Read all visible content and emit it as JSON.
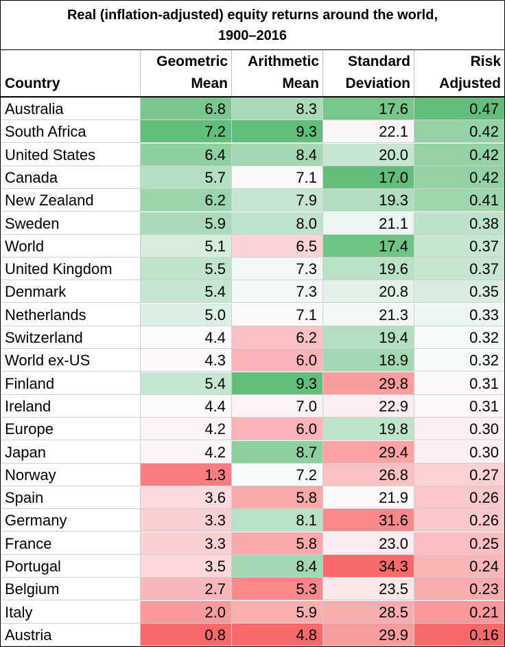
{
  "chart_data": {
    "type": "table",
    "title_lines": [
      "Real (inflation-adjusted) equity returns around the world,",
      "1900–2016"
    ],
    "columns": [
      {
        "key": "country",
        "lines": [
          "",
          "Country"
        ]
      },
      {
        "key": "geo",
        "lines": [
          "Geometric",
          "Mean"
        ]
      },
      {
        "key": "arith",
        "lines": [
          "Arithmetic",
          "Mean"
        ]
      },
      {
        "key": "sd",
        "lines": [
          "Standard",
          "Deviation"
        ]
      },
      {
        "key": "risk",
        "lines": [
          "Risk",
          "Adjusted"
        ]
      }
    ],
    "rows": [
      {
        "country": "Australia",
        "geo": "6.8",
        "arith": "8.3",
        "sd": "17.6",
        "risk": "0.47"
      },
      {
        "country": "South Africa",
        "geo": "7.2",
        "arith": "9.3",
        "sd": "22.1",
        "risk": "0.42"
      },
      {
        "country": "United States",
        "geo": "6.4",
        "arith": "8.4",
        "sd": "20.0",
        "risk": "0.42"
      },
      {
        "country": "Canada",
        "geo": "5.7",
        "arith": "7.1",
        "sd": "17.0",
        "risk": "0.42"
      },
      {
        "country": "New Zealand",
        "geo": "6.2",
        "arith": "7.9",
        "sd": "19.3",
        "risk": "0.41"
      },
      {
        "country": "Sweden",
        "geo": "5.9",
        "arith": "8.0",
        "sd": "21.1",
        "risk": "0.38"
      },
      {
        "country": "World",
        "geo": "5.1",
        "arith": "6.5",
        "sd": "17.4",
        "risk": "0.37"
      },
      {
        "country": "United Kingdom",
        "geo": "5.5",
        "arith": "7.3",
        "sd": "19.6",
        "risk": "0.37"
      },
      {
        "country": "Denmark",
        "geo": "5.4",
        "arith": "7.3",
        "sd": "20.8",
        "risk": "0.35"
      },
      {
        "country": "Netherlands",
        "geo": "5.0",
        "arith": "7.1",
        "sd": "21.3",
        "risk": "0.33"
      },
      {
        "country": "Switzerland",
        "geo": "4.4",
        "arith": "6.2",
        "sd": "19.4",
        "risk": "0.32"
      },
      {
        "country": "World ex-US",
        "geo": "4.3",
        "arith": "6.0",
        "sd": "18.9",
        "risk": "0.32"
      },
      {
        "country": "Finland",
        "geo": "5.4",
        "arith": "9.3",
        "sd": "29.8",
        "risk": "0.31"
      },
      {
        "country": "Ireland",
        "geo": "4.4",
        "arith": "7.0",
        "sd": "22.9",
        "risk": "0.31"
      },
      {
        "country": "Europe",
        "geo": "4.2",
        "arith": "6.0",
        "sd": "19.8",
        "risk": "0.30"
      },
      {
        "country": "Japan",
        "geo": "4.2",
        "arith": "8.7",
        "sd": "29.4",
        "risk": "0.30"
      },
      {
        "country": "Norway",
        "geo": "1.3",
        "arith": "7.2",
        "sd": "26.8",
        "risk": "0.27"
      },
      {
        "country": "Spain",
        "geo": "3.6",
        "arith": "5.8",
        "sd": "21.9",
        "risk": "0.26"
      },
      {
        "country": "Germany",
        "geo": "3.3",
        "arith": "8.1",
        "sd": "31.6",
        "risk": "0.26"
      },
      {
        "country": "France",
        "geo": "3.3",
        "arith": "5.8",
        "sd": "23.0",
        "risk": "0.25"
      },
      {
        "country": "Portugal",
        "geo": "3.5",
        "arith": "8.4",
        "sd": "34.3",
        "risk": "0.24"
      },
      {
        "country": "Belgium",
        "geo": "2.7",
        "arith": "5.3",
        "sd": "23.5",
        "risk": "0.23"
      },
      {
        "country": "Italy",
        "geo": "2.0",
        "arith": "5.9",
        "sd": "28.5",
        "risk": "0.21"
      },
      {
        "country": "Austria",
        "geo": "0.8",
        "arith": "4.8",
        "sd": "29.9",
        "risk": "0.16"
      }
    ],
    "color_scale": {
      "good": "#63be7b",
      "mid": "#fcfcff",
      "bad": "#f8696b",
      "columns": {
        "geo": {
          "higher_is_better": true
        },
        "arith": {
          "higher_is_better": true
        },
        "sd": {
          "higher_is_better": false
        },
        "risk": {
          "higher_is_better": true
        }
      }
    }
  }
}
